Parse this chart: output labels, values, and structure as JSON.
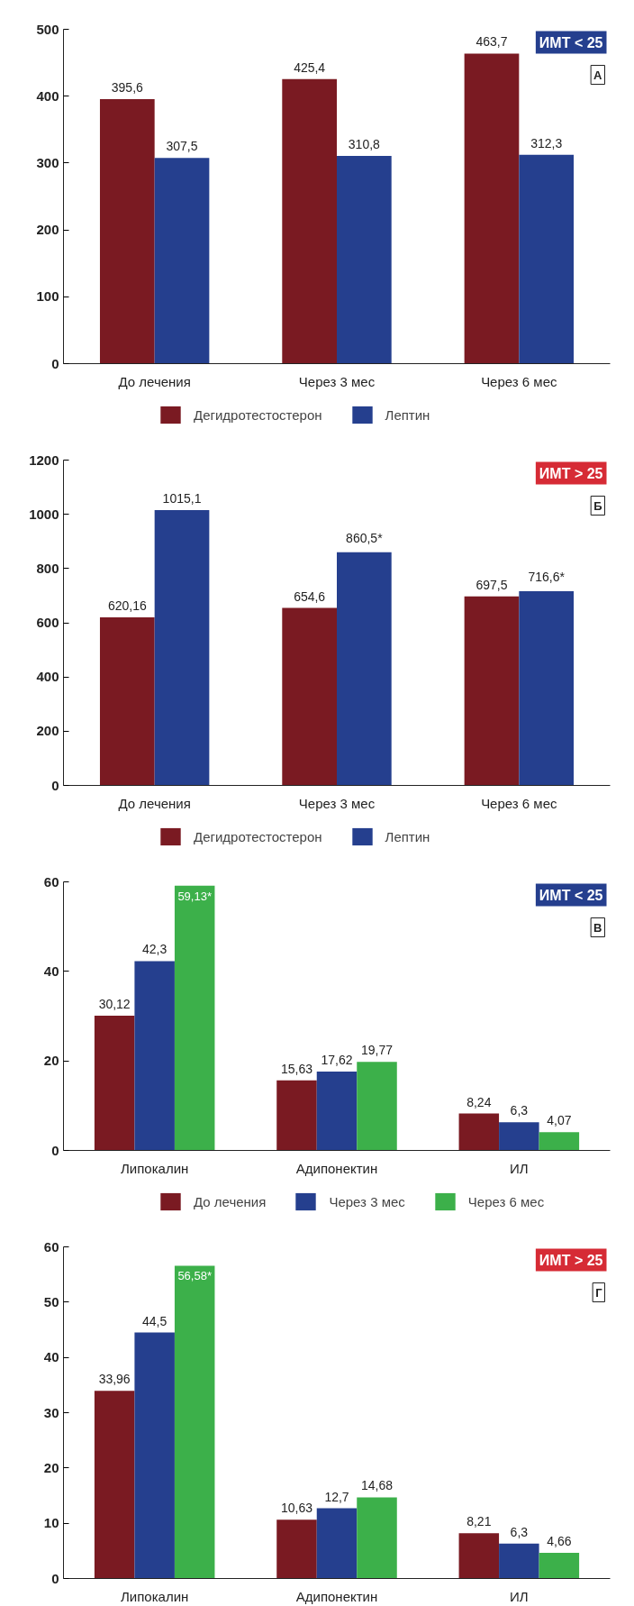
{
  "chart_data": [
    {
      "type": "bar",
      "categories": [
        "До лечения",
        "Через 3 мес",
        "Через 6 мес"
      ],
      "series": [
        {
          "name": "Дегидротестостерон",
          "color": "#7a1a22",
          "values": [
            395.6,
            425.4,
            463.7
          ],
          "value_labels": [
            "395,6",
            "425,4",
            "463,7"
          ]
        },
        {
          "name": "Лептин",
          "color": "#253f8e",
          "values": [
            307.5,
            310.8,
            312.3
          ],
          "value_labels": [
            "307,5",
            "310,8",
            "312,3"
          ]
        }
      ],
      "ylim": [
        0,
        500
      ],
      "yticks": [
        0,
        100,
        200,
        300,
        400,
        500
      ],
      "legend": "bottom",
      "annotations": [
        "ИМТ < 25",
        "А"
      ]
    },
    {
      "type": "bar",
      "categories": [
        "До лечения",
        "Через 3 мес",
        "Через 6 мес"
      ],
      "series": [
        {
          "name": "Дегидротестостерон",
          "color": "#7a1a22",
          "values": [
            620.16,
            654.6,
            697.5
          ],
          "value_labels": [
            "620,16",
            "654,6",
            "697,5"
          ]
        },
        {
          "name": "Лептин",
          "color": "#253f8e",
          "values": [
            1015.1,
            860.5,
            716.6
          ],
          "value_labels": [
            "1015,1",
            "860,5*",
            "716,6*"
          ]
        }
      ],
      "ylim": [
        0,
        1200
      ],
      "yticks": [
        0,
        200,
        400,
        600,
        800,
        1000,
        1200
      ],
      "legend": "bottom",
      "annotations": [
        "ИМТ > 25",
        "Б"
      ]
    },
    {
      "type": "bar",
      "categories": [
        "Липокалин",
        "Адипонектин",
        "ИЛ"
      ],
      "series": [
        {
          "name": "До лечения",
          "color": "#7a1a22",
          "values": [
            30.12,
            15.63,
            8.24
          ],
          "value_labels": [
            "30,12",
            "15,63",
            "8,24"
          ]
        },
        {
          "name": "Через 3 мес",
          "color": "#253f8e",
          "values": [
            42.3,
            17.62,
            6.3
          ],
          "value_labels": [
            "42,3",
            "17,62",
            "6,3"
          ]
        },
        {
          "name": "Через 6 мес",
          "color": "#3cb04a",
          "values": [
            59.13,
            19.77,
            4.07
          ],
          "value_labels": [
            "59,13*",
            "19,77",
            "4,07"
          ]
        }
      ],
      "ylim": [
        0,
        60
      ],
      "yticks": [
        0,
        20,
        40,
        60
      ],
      "legend": "bottom",
      "annotations": [
        "ИМТ < 25",
        "В"
      ]
    },
    {
      "type": "bar",
      "categories": [
        "Липокалин",
        "Адипонектин",
        "ИЛ"
      ],
      "series": [
        {
          "color": "#7a1a22",
          "values": [
            33.96,
            10.63,
            8.21
          ],
          "value_labels": [
            "33,96",
            "10,63",
            "8,21"
          ]
        },
        {
          "color": "#253f8e",
          "values": [
            44.5,
            12.7,
            6.3
          ],
          "value_labels": [
            "44,5",
            "12,7",
            "6,3"
          ]
        },
        {
          "color": "#3cb04a",
          "values": [
            56.58,
            14.68,
            4.66
          ],
          "value_labels": [
            "56,58*",
            "14,68",
            "4,66"
          ]
        }
      ],
      "ylim": [
        0,
        60
      ],
      "yticks": [
        0,
        10,
        20,
        30,
        40,
        50,
        60
      ],
      "annotations": [
        "ИМТ > 25",
        "Г"
      ]
    }
  ]
}
